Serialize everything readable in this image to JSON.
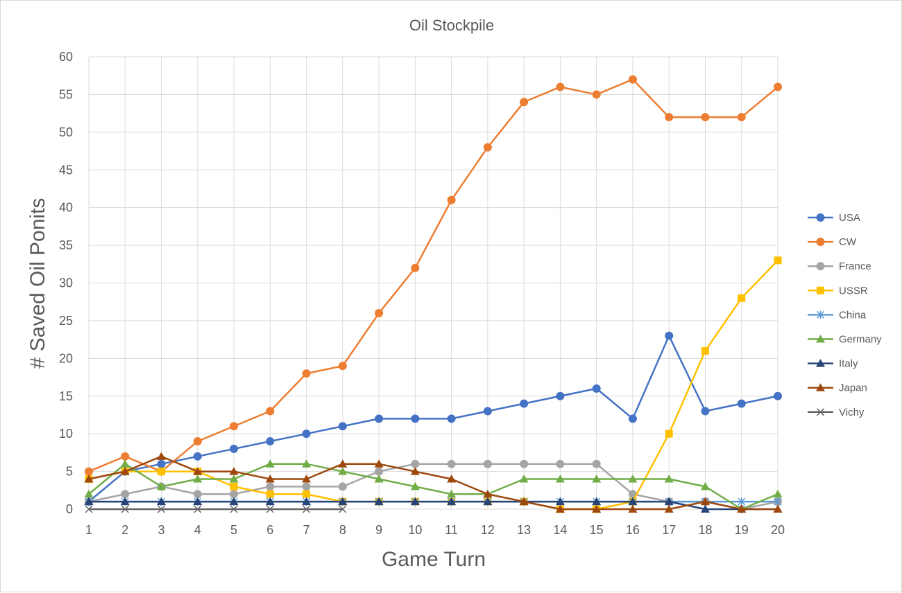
{
  "chart_data": {
    "type": "line",
    "title": "Oil Stockpile",
    "xlabel": "Game Turn",
    "ylabel": "# Saved Oil Ponits",
    "x": [
      1,
      2,
      3,
      4,
      5,
      6,
      7,
      8,
      9,
      10,
      11,
      12,
      13,
      14,
      15,
      16,
      17,
      18,
      19,
      20
    ],
    "ylim": [
      0,
      60
    ],
    "yticks": [
      0,
      5,
      10,
      15,
      20,
      25,
      30,
      35,
      40,
      45,
      50,
      55,
      60
    ],
    "grid": true,
    "legend_position": "right",
    "series": [
      {
        "name": "USA",
        "color": "#4472c4",
        "marker": "circle",
        "values": [
          1,
          5,
          6,
          7,
          8,
          9,
          10,
          11,
          12,
          12,
          12,
          13,
          14,
          15,
          16,
          12,
          23,
          13,
          14,
          15
        ]
      },
      {
        "name": "CW",
        "color": "#ed7d31",
        "marker": "circle",
        "values": [
          5,
          7,
          5,
          9,
          11,
          13,
          18,
          19,
          26,
          32,
          41,
          48,
          54,
          56,
          55,
          57,
          52,
          52,
          52,
          56
        ]
      },
      {
        "name": "France",
        "color": "#a5a5a5",
        "marker": "circle",
        "values": [
          1,
          2,
          3,
          2,
          2,
          3,
          3,
          3,
          5,
          6,
          6,
          6,
          6,
          6,
          6,
          2,
          1,
          1,
          0,
          1
        ]
      },
      {
        "name": "USSR",
        "color": "#ffc000",
        "marker": "square",
        "values": [
          4,
          5,
          5,
          5,
          3,
          2,
          2,
          1,
          1,
          1,
          1,
          1,
          1,
          0,
          0,
          1,
          10,
          21,
          28,
          33
        ]
      },
      {
        "name": "China",
        "color": "#5b9bd5",
        "marker": "star",
        "values": [
          1,
          1,
          1,
          1,
          1,
          1,
          1,
          1,
          1,
          1,
          1,
          1,
          1,
          1,
          1,
          1,
          1,
          1,
          1,
          1
        ]
      },
      {
        "name": "Germany",
        "color": "#70ad47",
        "marker": "triangle",
        "values": [
          2,
          6,
          3,
          4,
          4,
          6,
          6,
          5,
          4,
          3,
          2,
          2,
          4,
          4,
          4,
          4,
          4,
          3,
          0,
          2
        ]
      },
      {
        "name": "Italy",
        "color": "#264478",
        "marker": "triangle",
        "values": [
          1,
          1,
          1,
          1,
          1,
          1,
          1,
          1,
          1,
          1,
          1,
          1,
          1,
          1,
          1,
          1,
          1,
          0,
          0,
          0
        ]
      },
      {
        "name": "Japan",
        "color": "#9e480e",
        "marker": "triangle",
        "values": [
          4,
          5,
          7,
          5,
          5,
          4,
          4,
          6,
          6,
          5,
          4,
          2,
          1,
          0,
          0,
          0,
          0,
          1,
          0,
          0
        ]
      },
      {
        "name": "Vichy",
        "color": "#636363",
        "marker": "x",
        "values": [
          0,
          0,
          0,
          0,
          0,
          0,
          0,
          0,
          null,
          null,
          null,
          null,
          null,
          null,
          null,
          null,
          null,
          null,
          null,
          null
        ]
      }
    ]
  }
}
